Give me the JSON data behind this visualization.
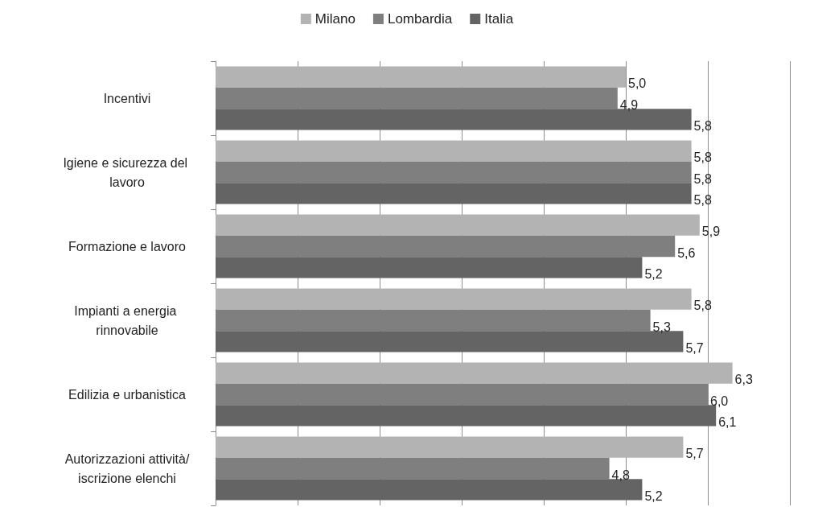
{
  "chart_data": {
    "type": "bar",
    "orientation": "horizontal",
    "categories": [
      "Incentivi",
      "Igiene e sicurezza del lavoro",
      "Formazione e lavoro",
      "Impianti a energia rinnovabile",
      "Edilizia e urbanistica",
      "Autorizzazioni attività/iscrizione elenchi"
    ],
    "series": [
      {
        "name": "Milano",
        "color": "#b3b3b3",
        "values": [
          5.0,
          5.8,
          5.9,
          5.8,
          6.3,
          5.7
        ],
        "value_labels": [
          "5,0",
          "5,8",
          "5,9",
          "5,8",
          "6,3",
          "5,7"
        ]
      },
      {
        "name": "Lombardia",
        "color": "#7f7f7f",
        "values": [
          4.9,
          5.8,
          5.6,
          5.3,
          6.0,
          4.8
        ],
        "value_labels": [
          "4,9",
          "5,8",
          "5,6",
          "5,3",
          "6,0",
          "4,8"
        ]
      },
      {
        "name": "Italia",
        "color": "#646464",
        "values": [
          5.8,
          5.8,
          5.2,
          5.7,
          6.1,
          5.2
        ],
        "value_labels": [
          "5,8",
          "5,8",
          "5,2",
          "5,7",
          "6,1",
          "5,2"
        ]
      }
    ],
    "xlim": [
      0,
      7
    ],
    "xticks": [
      {
        "value": 0,
        "label": null
      },
      {
        "value": 1,
        "label": null
      },
      {
        "value": 2,
        "label": null
      },
      {
        "value": 3,
        "label": null
      },
      {
        "value": 4,
        "label": null
      },
      {
        "value": 5,
        "label": null
      },
      {
        "value": 6,
        "label": null
      },
      {
        "value": 7,
        "label": null
      }
    ],
    "grid": "x",
    "legend": "top",
    "tick_labels": "y"
  }
}
